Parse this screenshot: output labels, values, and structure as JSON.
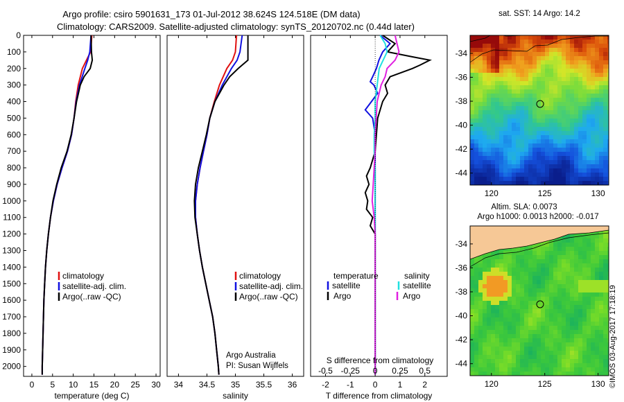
{
  "header": {
    "line1": "Argo profile: csiro 5901631_173 01-Jul-2012 38.624S 124.518E (DM data)",
    "line2": "Climatology: CARS2009. Satellite-adjusted climatology: synTS_20120702.nc (0.44d later)"
  },
  "colors": {
    "climatology": "#e01010",
    "satellite": "#1010e0",
    "argo": "#000000",
    "sal_satellite": "#20e0e0",
    "sal_argo": "#e020e0"
  },
  "depth_ticks": [
    0,
    100,
    200,
    300,
    400,
    500,
    600,
    700,
    800,
    900,
    1000,
    1100,
    1200,
    1300,
    1400,
    1500,
    1600,
    1700,
    1800,
    1900,
    2000
  ],
  "legend": {
    "climatology": "climatology",
    "satellite_adj": "satellite-adj. clim.",
    "argo": "Argo(..raw -QC)"
  },
  "argo_credit": {
    "line1": "Argo Australia",
    "line2": "PI: Susan Wijffels"
  },
  "diff_legend": {
    "temperature": "temperature",
    "salinity": "salinity",
    "satellite": "satellite",
    "argo": "Argo"
  },
  "diff_labels": {
    "top": "S difference from climatology",
    "top_ticks": [
      "-0.5",
      "-0.25",
      "0",
      "0.25",
      "0.5"
    ],
    "bottom": "T difference from climatology"
  },
  "maps": {
    "sst_title": "sat. SST: 14 Argo: 14.2",
    "sla_title1": "Altim. SLA: 0.0073",
    "sla_title2": "Argo h1000: 0.0013 h2000: -0.017",
    "lat_ticks": [
      "-34",
      "-36",
      "-38",
      "-40",
      "-42",
      "-44"
    ],
    "lon_ticks": [
      "120",
      "125",
      "130"
    ]
  },
  "copyright": "©IMOS 03-Aug-2017 17:18:19",
  "chart_data": [
    {
      "type": "line",
      "id": "temperature",
      "xlabel": "temperature (deg C)",
      "ylabel": "",
      "xlim": [
        -2,
        31
      ],
      "ylim": [
        2060,
        0
      ],
      "grid": false,
      "xticks": [
        0,
        5,
        10,
        15,
        20,
        25,
        30
      ],
      "legend_position": "lower-center",
      "series": [
        {
          "name": "climatology",
          "depth": [
            0,
            100,
            150,
            200,
            300,
            400,
            500,
            600,
            700,
            800,
            900,
            1000,
            1100,
            1200,
            1300,
            1400,
            1500,
            1600,
            1700,
            1800,
            1900,
            2000,
            2050
          ],
          "values": [
            14.5,
            14.2,
            13.2,
            12.2,
            11.2,
            10.6,
            10.2,
            9.6,
            8.6,
            7.3,
            6.1,
            5.2,
            4.5,
            4.0,
            3.6,
            3.3,
            3.1,
            2.9,
            2.8,
            2.7,
            2.6,
            2.5,
            2.5
          ]
        },
        {
          "name": "satellite-adj. clim.",
          "depth": [
            0,
            100,
            150,
            200,
            300,
            400,
            500,
            600,
            700,
            800,
            900,
            1000,
            1100,
            1200,
            1300,
            1400,
            1500,
            1600,
            1700,
            1800,
            1900,
            2000,
            2050
          ],
          "values": [
            14.3,
            14.0,
            13.5,
            12.8,
            11.5,
            10.7,
            10.2,
            9.6,
            8.6,
            7.3,
            6.1,
            5.2,
            4.5,
            4.0,
            3.6,
            3.3,
            3.1,
            2.9,
            2.8,
            2.7,
            2.6,
            2.5,
            2.5
          ]
        },
        {
          "name": "Argo(..raw -QC)",
          "depth": [
            0,
            100,
            150,
            200,
            250,
            300,
            400,
            500,
            600,
            700,
            800,
            900,
            1000,
            1100,
            1200,
            1300,
            1400,
            1500,
            1600,
            1700,
            1800,
            1900,
            2000,
            2050
          ],
          "values": [
            14.3,
            14.4,
            14.6,
            14.1,
            12.6,
            11.7,
            10.8,
            10.2,
            9.5,
            8.5,
            7.1,
            6.0,
            5.1,
            4.5,
            4.0,
            3.6,
            3.3,
            3.1,
            2.9,
            2.8,
            2.7,
            2.6,
            2.5,
            2.5
          ]
        }
      ]
    },
    {
      "type": "line",
      "id": "salinity",
      "xlabel": "salinity",
      "ylabel": "",
      "xlim": [
        33.8,
        36.2
      ],
      "ylim": [
        2060,
        0
      ],
      "grid": false,
      "xticks": [
        34,
        34.5,
        35,
        35.5,
        36
      ],
      "legend_position": "lower-center",
      "series": [
        {
          "name": "climatology",
          "depth": [
            0,
            100,
            150,
            200,
            300,
            400,
            500,
            600,
            700,
            800,
            900,
            1000,
            1100,
            1200,
            1300,
            1400,
            1500,
            1600,
            1700,
            1800,
            1900,
            2000,
            2050
          ],
          "values": [
            35.02,
            35.0,
            34.95,
            34.85,
            34.72,
            34.63,
            34.55,
            34.5,
            34.44,
            34.38,
            34.33,
            34.3,
            34.3,
            34.33,
            34.37,
            34.42,
            34.48,
            34.54,
            34.6,
            34.64,
            34.67,
            34.7,
            34.71
          ]
        },
        {
          "name": "satellite-adj. clim.",
          "depth": [
            0,
            100,
            150,
            200,
            300,
            400,
            500,
            600,
            700,
            800,
            900,
            1000,
            1100,
            1200,
            1300,
            1400,
            1500,
            1600,
            1700,
            1800,
            1900,
            2000,
            2050
          ],
          "values": [
            35.12,
            35.08,
            35.03,
            34.93,
            34.77,
            34.64,
            34.55,
            34.5,
            34.44,
            34.38,
            34.33,
            34.3,
            34.3,
            34.33,
            34.37,
            34.42,
            34.48,
            34.54,
            34.6,
            34.64,
            34.67,
            34.7,
            34.71
          ]
        },
        {
          "name": "Argo(..raw -QC)",
          "depth": [
            0,
            100,
            150,
            200,
            250,
            300,
            400,
            500,
            600,
            700,
            800,
            900,
            1000,
            1100,
            1200,
            1300,
            1400,
            1500,
            1600,
            1700,
            1800,
            1900,
            2000,
            2050
          ],
          "values": [
            35.22,
            35.22,
            35.22,
            35.05,
            34.9,
            34.8,
            34.64,
            34.55,
            34.49,
            34.42,
            34.35,
            34.3,
            34.28,
            34.29,
            34.33,
            34.37,
            34.42,
            34.48,
            34.54,
            34.6,
            34.64,
            34.67,
            34.7,
            34.71
          ]
        }
      ]
    },
    {
      "type": "line",
      "id": "difference",
      "xlabel": "T difference from climatology",
      "ylabel": "",
      "xlim": [
        -2.6,
        2.9
      ],
      "ylim": [
        2060,
        0
      ],
      "grid": false,
      "xticks": [
        -2,
        -1,
        0,
        1,
        2
      ],
      "top_axis": {
        "label": "S difference from climatology",
        "ticks": [
          -0.5,
          -0.25,
          0,
          0.25,
          0.5
        ]
      },
      "legend_position": "lower-center",
      "series": [
        {
          "name": "temperature satellite",
          "depth": [
            0,
            50,
            100,
            150,
            200,
            250,
            280,
            300,
            350,
            400,
            450,
            500,
            600,
            700,
            800,
            900,
            1000,
            1100,
            1200,
            1500,
            2000,
            2050
          ],
          "values": [
            0.2,
            0.6,
            0.3,
            0.15,
            0.05,
            -0.1,
            -0.2,
            -0.05,
            0.1,
            -0.15,
            -0.4,
            -0.1,
            0.0,
            0.0,
            0.0,
            0.0,
            0.0,
            0.0,
            0.0,
            0.0,
            0.0,
            0.0
          ]
        },
        {
          "name": "temperature Argo",
          "depth": [
            0,
            50,
            100,
            130,
            150,
            180,
            200,
            250,
            300,
            350,
            400,
            450,
            500,
            600,
            700,
            800,
            850,
            900,
            950,
            1000,
            1050,
            1100,
            1150,
            1200,
            1300,
            1500,
            2000,
            2050
          ],
          "values": [
            0.3,
            0.8,
            0.5,
            1.5,
            2.2,
            1.8,
            1.5,
            0.6,
            0.4,
            0.5,
            0.3,
            0.2,
            0.1,
            0.05,
            0.0,
            -0.2,
            -0.35,
            -0.25,
            -0.4,
            -0.3,
            -0.35,
            -0.1,
            -0.2,
            0.0,
            0.0,
            0.0,
            0.0,
            0.0
          ]
        },
        {
          "name": "salinity satellite",
          "depth": [
            0,
            50,
            100,
            150,
            200,
            300,
            400,
            500,
            600,
            700,
            800,
            900,
            1000,
            1100,
            1200,
            1500,
            2000,
            2050
          ],
          "values": [
            0.05,
            0.1,
            0.12,
            0.08,
            0.04,
            0.02,
            0.0,
            0.0,
            -0.01,
            -0.01,
            0.0,
            0.0,
            0.0,
            0.0,
            0.0,
            0.0,
            0.0,
            0.0
          ]
        },
        {
          "name": "salinity Argo",
          "depth": [
            0,
            50,
            100,
            150,
            200,
            250,
            300,
            400,
            500,
            600,
            700,
            800,
            900,
            1000,
            1050,
            1100,
            1200,
            1500,
            2000,
            2050
          ],
          "values": [
            0.2,
            0.22,
            0.24,
            0.2,
            0.12,
            0.1,
            0.06,
            0.02,
            0.01,
            0.0,
            0.0,
            -0.01,
            -0.02,
            -0.03,
            -0.02,
            -0.01,
            0.0,
            0.0,
            0.0,
            0.0
          ]
        }
      ]
    },
    {
      "type": "heatmap",
      "id": "sst_map",
      "title": "sat. SST: 14 Argo: 14.2",
      "xlim": [
        118,
        131
      ],
      "ylim": [
        -45,
        -32.5
      ],
      "xticks": [
        120,
        125,
        130
      ],
      "yticks": [
        -44,
        -42,
        -40,
        -38,
        -36,
        -34
      ],
      "argo_position": {
        "lon": 124.518,
        "lat": -38.624
      }
    },
    {
      "type": "heatmap",
      "id": "sla_map",
      "title": "Altim. SLA: 0.0073",
      "xlim": [
        118,
        131
      ],
      "ylim": [
        -45,
        -32.5
      ],
      "xticks": [
        120,
        125,
        130
      ],
      "yticks": [
        -44,
        -42,
        -40,
        -38,
        -36,
        -34
      ],
      "argo_position": {
        "lon": 124.518,
        "lat": -38.624
      }
    }
  ]
}
